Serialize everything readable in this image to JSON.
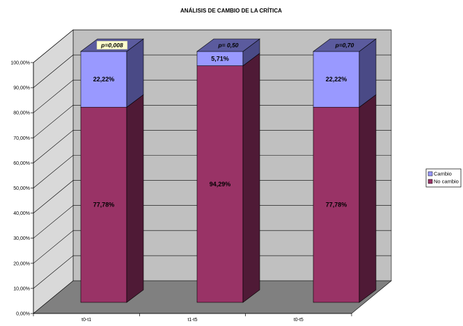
{
  "chart_data": {
    "type": "bar",
    "stacked": true,
    "three_d": true,
    "title": "ANÁLISIS DE CAMBIO DE LA CRÍTICA",
    "categories": [
      "t0-t1",
      "t1-t5",
      "t0-t5"
    ],
    "series": [
      {
        "name": "No cambio",
        "values": [
          77.78,
          94.29,
          77.78
        ],
        "labels": [
          "77,78%",
          "94,29%",
          "77,78%"
        ],
        "color": "#993366"
      },
      {
        "name": "Cambio",
        "values": [
          22.22,
          5.71,
          22.22
        ],
        "labels": [
          "22,22%",
          "5,71%",
          "22,22%"
        ],
        "color": "#9999FF"
      }
    ],
    "annotations": [
      "p=0,008",
      "p= 0,50",
      "p=0,70"
    ],
    "y_ticks": [
      "0,00%",
      "10,00%",
      "20,00%",
      "30,00%",
      "40,00%",
      "50,00%",
      "60,00%",
      "70,00%",
      "80,00%",
      "90,00%",
      "100,00%"
    ],
    "ylim": [
      0,
      100
    ],
    "grid": true,
    "legend_position": "right"
  },
  "colors": {
    "wall": "#c0c0c0",
    "side_wall": "#d9d9d9",
    "floor": "#808080",
    "cambio_top": "#5b5b9e",
    "cambio_side": "#4a4a86",
    "no_cambio_side": "#4f1a36",
    "annotation_highlight": "#ffffcc"
  }
}
